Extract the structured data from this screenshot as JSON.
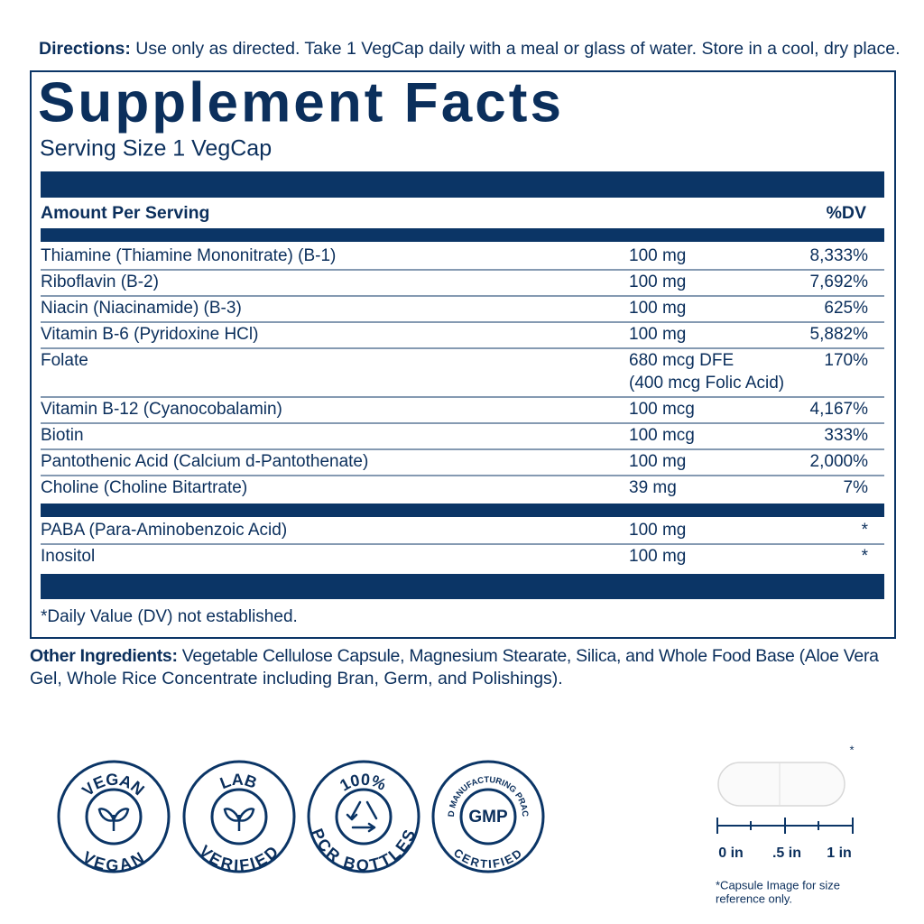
{
  "directions": {
    "label": "Directions:",
    "text": "Use only as directed. Take 1 VegCap daily with a meal or glass of water. Store in a cool, dry place."
  },
  "facts": {
    "title": "Supplement Facts",
    "serving_size": "Serving Size 1 VegCap",
    "amount_header": "Amount Per Serving",
    "dv_header": "%DV",
    "rows": [
      {
        "name": "Thiamine (Thiamine Mononitrate) (B-1)",
        "amount": [
          "100 mg"
        ],
        "dv": "8,333%"
      },
      {
        "name": "Riboflavin (B-2)",
        "amount": [
          "100 mg"
        ],
        "dv": "7,692%"
      },
      {
        "name": "Niacin (Niacinamide) (B-3)",
        "amount": [
          "100 mg"
        ],
        "dv": "625%"
      },
      {
        "name": "Vitamin B-6 (Pyridoxine HCl)",
        "amount": [
          "100 mg"
        ],
        "dv": "5,882%"
      },
      {
        "name": "Folate",
        "amount": [
          "680 mcg DFE",
          "(400 mcg Folic Acid)"
        ],
        "dv": "170%"
      },
      {
        "name": "Vitamin B-12 (Cyanocobalamin)",
        "amount": [
          "100 mcg"
        ],
        "dv": "4,167%"
      },
      {
        "name": "Biotin",
        "amount": [
          "100 mcg"
        ],
        "dv": "333%"
      },
      {
        "name": "Pantothenic Acid (Calcium d-Pantothenate)",
        "amount": [
          "100 mg"
        ],
        "dv": "2,000%"
      },
      {
        "name": "Choline (Choline Bitartrate)",
        "amount": [
          "39 mg"
        ],
        "dv": "7%"
      }
    ],
    "other_rows": [
      {
        "name": "PABA (Para-Aminobenzoic Acid)",
        "amount": [
          "100 mg"
        ],
        "dv": "*"
      },
      {
        "name": "Inositol",
        "amount": [
          "100 mg"
        ],
        "dv": "*"
      }
    ],
    "footnote": "*Daily Value (DV) not established."
  },
  "other_ingredients": {
    "label": "Other Ingredients:",
    "lines": [
      "Vegetable Cellulose Capsule, Magnesium Stearate, Silica, and Whole Food Base (Aloe Vera",
      "Gel, Whole Rice Concentrate including Bran, Germ, and Polishings)."
    ]
  },
  "badges": [
    {
      "top": "VEGAN",
      "bottom": "VEGAN",
      "icon": "sprout"
    },
    {
      "top": "LAB",
      "bottom": "VERIFIED",
      "icon": "sprout"
    },
    {
      "top": "100%",
      "bottom": "PCR BOTTLES",
      "icon": "recycle"
    },
    {
      "top": "GOOD MANUFACTURING PRACTICE",
      "center": "GMP",
      "bottom": "CERTIFIED",
      "icon": "gmp"
    }
  ],
  "capsule": {
    "asterisk": "*",
    "ruler_labels": [
      "0 in",
      ".5 in",
      "1 in"
    ],
    "note": [
      "*Capsule Image for size",
      "reference only."
    ]
  }
}
